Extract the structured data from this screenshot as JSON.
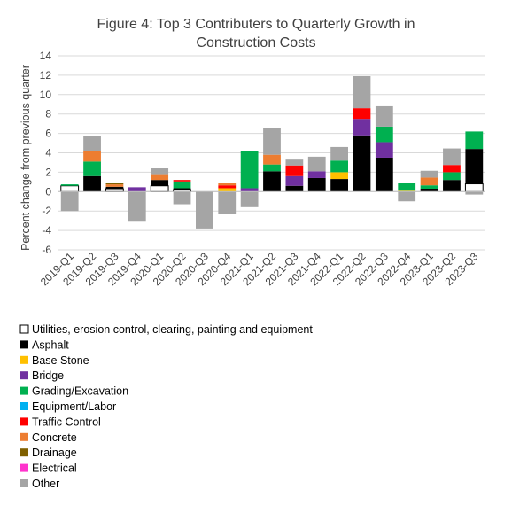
{
  "chart_data": {
    "type": "bar",
    "stacked": true,
    "title_line1": "Figure 4: Top 3 Contributers to Quarterly Growth in",
    "title_line2": "Construction Costs",
    "xlabel": "",
    "ylabel": "Percent change from previous quarter",
    "ylim": [
      -6,
      14
    ],
    "yticks": [
      -6,
      -4,
      -2,
      0,
      2,
      4,
      6,
      8,
      10,
      12,
      14
    ],
    "grid": true,
    "legend_position": "bottom",
    "categories": [
      "2019-Q1",
      "2019-Q2",
      "2019-Q3",
      "2019-Q4",
      "2020-Q1",
      "2020-Q2",
      "2020-Q3",
      "2020-Q4",
      "2021-Q1",
      "2021-Q2",
      "2021-Q3",
      "2021-Q4",
      "2022-Q1",
      "2022-Q2",
      "2022-Q3",
      "2022-Q4",
      "2023-Q1",
      "2023-Q2",
      "2023-Q3"
    ],
    "series": [
      {
        "name": "Utilities, erosion control, clearing, painting and equipment",
        "color": "#ffffff",
        "outline": "#000000",
        "values": [
          0.6,
          0,
          0.3,
          0,
          0.6,
          0.2,
          0,
          0,
          0,
          0,
          0,
          0,
          0,
          0,
          0,
          0,
          0,
          0,
          0.8
        ]
      },
      {
        "name": "Asphalt",
        "color": "#000000",
        "values": [
          0,
          1.6,
          0.2,
          0,
          0.6,
          0.15,
          0,
          0,
          0,
          2.1,
          0.6,
          1.4,
          1.3,
          5.8,
          3.5,
          0,
          0.3,
          1.2,
          3.6
        ]
      },
      {
        "name": "Base Stone",
        "color": "#ffc000",
        "values": [
          0,
          0,
          0,
          0,
          0,
          0,
          0,
          0.35,
          0,
          0,
          0,
          0,
          0.7,
          0,
          0,
          0.1,
          0,
          0,
          0
        ]
      },
      {
        "name": "Bridge",
        "color": "#7030a0",
        "values": [
          0,
          0,
          0,
          0.45,
          0,
          0,
          0,
          0,
          0.35,
          0,
          1.0,
          0.7,
          0,
          1.7,
          1.6,
          0,
          0,
          0,
          0
        ]
      },
      {
        "name": "Grading/Excavation",
        "color": "#00b050",
        "values": [
          0.15,
          1.5,
          0,
          0,
          0,
          0.7,
          0,
          0,
          3.8,
          0.7,
          0,
          0,
          1.2,
          0,
          1.6,
          0.8,
          0.35,
          0.8,
          1.8
        ]
      },
      {
        "name": "Equipment/Labor",
        "color": "#00b0f0",
        "values": [
          0,
          0,
          0,
          0,
          0,
          0,
          0,
          0,
          0,
          0,
          0,
          0,
          0,
          0,
          0,
          0,
          0,
          0,
          0
        ]
      },
      {
        "name": "Traffic Control",
        "color": "#ff0000",
        "values": [
          0,
          0,
          0,
          0,
          0,
          0.15,
          0,
          0.3,
          0,
          0,
          1.1,
          0,
          0,
          1.1,
          0,
          0,
          0,
          0.75,
          0
        ]
      },
      {
        "name": "Concrete",
        "color": "#ed7d31",
        "values": [
          0,
          1.1,
          0.25,
          0,
          0.6,
          0,
          0,
          0.2,
          0,
          1.0,
          0,
          0,
          0,
          0,
          0,
          0,
          0.8,
          0,
          0
        ]
      },
      {
        "name": "Drainage",
        "color": "#806000",
        "values": [
          0,
          0,
          0.15,
          0,
          0,
          0,
          0,
          0,
          0,
          0,
          0,
          0,
          0,
          0,
          0,
          0,
          0,
          0,
          0
        ]
      },
      {
        "name": "Electrical",
        "color": "#ff33cc",
        "values": [
          0,
          0,
          0,
          0,
          0,
          0,
          0,
          0,
          0,
          0,
          0,
          0,
          0,
          0,
          0,
          0,
          0,
          0,
          0
        ]
      },
      {
        "name": "Other",
        "color": "#a5a5a5",
        "values": [
          -2.0,
          1.5,
          0,
          -3.1,
          0.6,
          -1.3,
          -3.8,
          -2.3,
          -1.6,
          2.8,
          0.6,
          1.5,
          1.4,
          3.3,
          2.1,
          -1.0,
          0.7,
          1.7,
          -0.3
        ]
      }
    ]
  }
}
